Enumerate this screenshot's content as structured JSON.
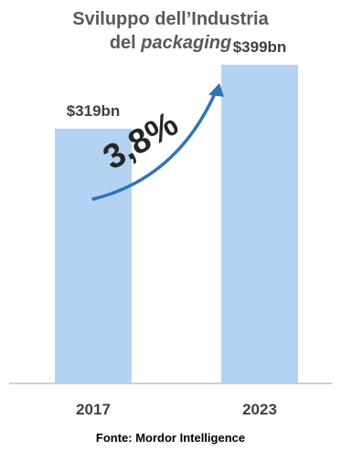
{
  "chart_data": {
    "type": "bar",
    "title_line1": "Sviluppo dell’Industria",
    "title_line2_prefix": "del ",
    "title_line2_italic": "packaging",
    "categories": [
      "2017",
      "2023"
    ],
    "values": [
      319,
      399
    ],
    "data_labels": [
      "$319bn",
      "$399bn"
    ],
    "growth_annotation": "3,8%",
    "ylim": [
      0,
      480
    ],
    "bar_color": "#B4D3F2",
    "arrow_color": "#2E75B6",
    "axis_color": "#BFBFBF",
    "grid": false,
    "legend": "none"
  },
  "source": "Fonte: Mordor Intelligence"
}
